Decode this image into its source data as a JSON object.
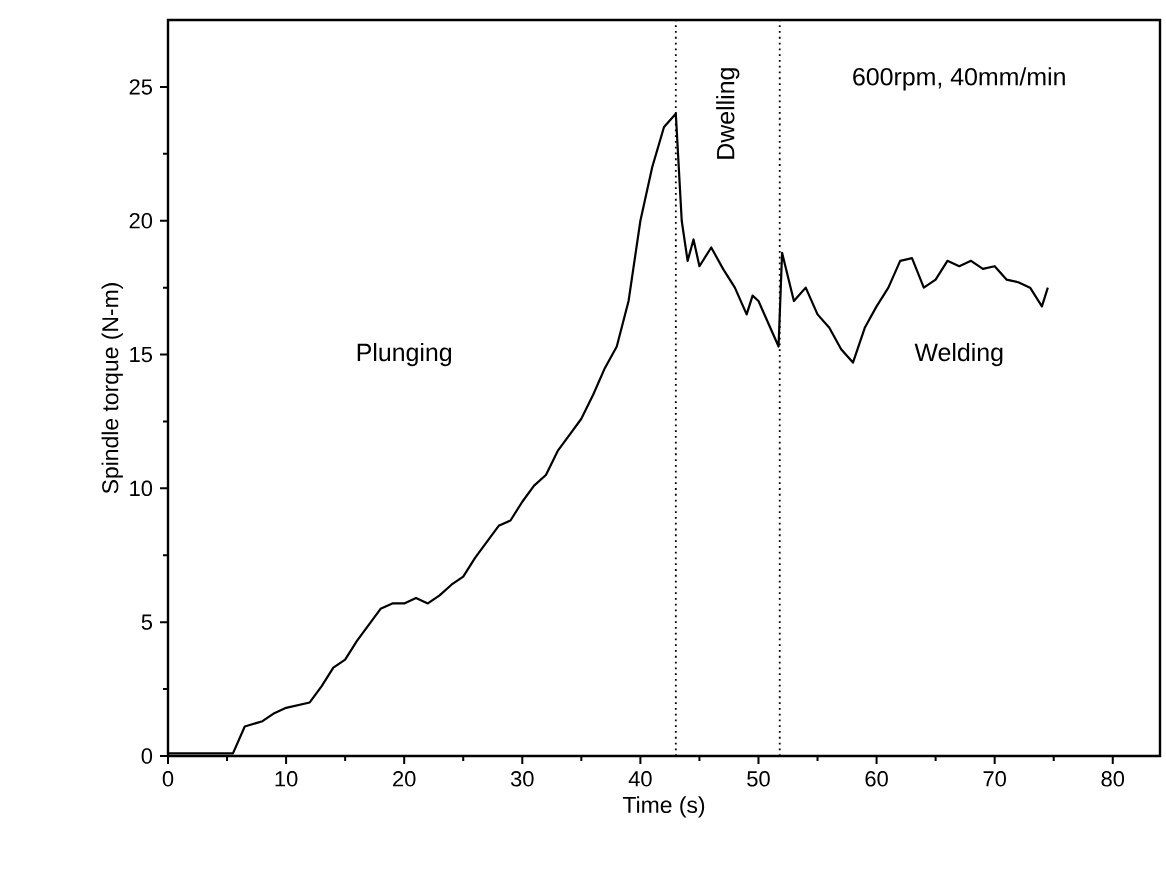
{
  "chart_data": {
    "type": "line",
    "xlabel": "Time (s)",
    "ylabel": "Spindle torque (N-m)",
    "xlim": [
      0,
      84
    ],
    "ylim": [
      0,
      27.5
    ],
    "xticks": [
      0,
      10,
      20,
      30,
      40,
      50,
      60,
      70,
      80
    ],
    "yticks": [
      0,
      5,
      10,
      15,
      20,
      25
    ],
    "marker": "none",
    "line_style": "solid",
    "series": [
      {
        "color": "#000000",
        "x": [
          0,
          5.5,
          6.5,
          8,
          9,
          10,
          11,
          12,
          13,
          14,
          15,
          16,
          17,
          18,
          19,
          20,
          21,
          22,
          23,
          24,
          25,
          26,
          27,
          28,
          29,
          30,
          31,
          32,
          33,
          34,
          35,
          36,
          37,
          38,
          39,
          40,
          41,
          42,
          43,
          43.5,
          44,
          44.5,
          45,
          46,
          47,
          48,
          49,
          49.5,
          50,
          51,
          51.7,
          52,
          53,
          54,
          55,
          56,
          57,
          58,
          59,
          60,
          61,
          62,
          63,
          64,
          65,
          66,
          67,
          68,
          69,
          70,
          71,
          72,
          73,
          74,
          74.5
        ],
        "values": [
          0.1,
          0.1,
          1.1,
          1.3,
          1.6,
          1.8,
          1.9,
          2.0,
          2.6,
          3.3,
          3.6,
          4.3,
          4.9,
          5.5,
          5.7,
          5.7,
          5.9,
          5.7,
          6.0,
          6.4,
          6.7,
          7.4,
          8.0,
          8.6,
          8.8,
          9.5,
          10.1,
          10.5,
          11.4,
          12.0,
          12.6,
          13.5,
          14.5,
          15.3,
          17.0,
          20.0,
          22.0,
          23.5,
          24.0,
          20.0,
          18.5,
          19.3,
          18.3,
          19.0,
          18.2,
          17.5,
          16.5,
          17.2,
          17.0,
          16.0,
          15.3,
          18.8,
          17.0,
          17.5,
          16.5,
          16.0,
          15.2,
          14.7,
          16.0,
          16.8,
          17.5,
          18.5,
          18.6,
          17.5,
          17.8,
          18.5,
          18.3,
          18.5,
          18.2,
          18.3,
          17.8,
          17.7,
          17.5,
          16.8,
          17.5
        ]
      }
    ],
    "ref_lines": [
      {
        "axis": "x",
        "value": 43,
        "line_style": "dotted",
        "color": "#000000"
      },
      {
        "axis": "x",
        "value": 51.8,
        "line_style": "dotted",
        "color": "#000000"
      }
    ],
    "annotations": [
      "Plunging",
      "Dwelling",
      "Welding",
      "600rpm, 40mm/min"
    ]
  }
}
